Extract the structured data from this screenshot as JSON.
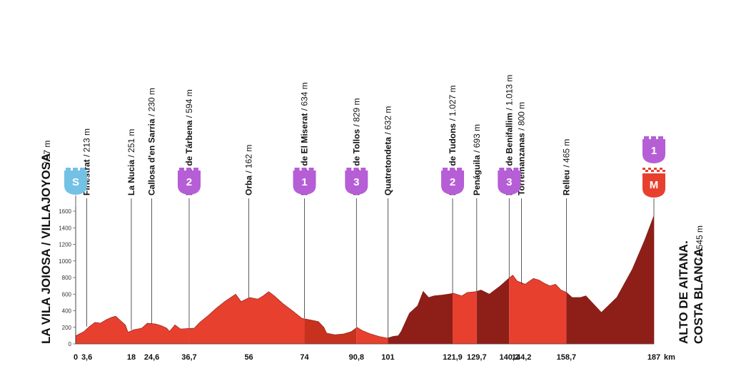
{
  "start_label": "LA VILA JOIOSA / VILLAJOYOSA",
  "start_alt": "/ 97 m",
  "finish_label_line1": "ALTO DE AITANA.",
  "finish_label_line2": "COSTA BLANCA",
  "finish_alt": "/ 1.545 m",
  "km_unit": "km",
  "colors": {
    "fill_light": "#e8402f",
    "fill_dark": "#8e1f18",
    "fill_mid": "#c9311f",
    "leader": "#333333",
    "start_badge": "#74c1e6",
    "cat_badge": "#b65ed6",
    "finish_badge": "#e8402f"
  },
  "chart_data": {
    "type": "area",
    "xlabel": "",
    "ylabel": "",
    "xlim": [
      0,
      187
    ],
    "ylim": [
      0,
      1700
    ],
    "y_ticks": [
      0,
      200,
      400,
      600,
      800,
      1000,
      1200,
      1400,
      1600
    ],
    "x_ticks": [
      {
        "km": 0,
        "label": "0"
      },
      {
        "km": 3.6,
        "label": "3,6"
      },
      {
        "km": 18,
        "label": "18"
      },
      {
        "km": 24.6,
        "label": "24,6"
      },
      {
        "km": 36.7,
        "label": "36,7"
      },
      {
        "km": 56,
        "label": "56"
      },
      {
        "km": 74,
        "label": "74"
      },
      {
        "km": 90.8,
        "label": "90,8"
      },
      {
        "km": 101,
        "label": "101"
      },
      {
        "km": 121.9,
        "label": "121,9"
      },
      {
        "km": 129.7,
        "label": "129,7"
      },
      {
        "km": 140.2,
        "label": "140,2"
      },
      {
        "km": 144.2,
        "label": "144,2"
      },
      {
        "km": 158.7,
        "label": "158,7"
      },
      {
        "km": 187,
        "label": "187"
      }
    ],
    "profile": [
      [
        0,
        97
      ],
      [
        3,
        150
      ],
      [
        5,
        210
      ],
      [
        7,
        260
      ],
      [
        9,
        250
      ],
      [
        11,
        290
      ],
      [
        13,
        320
      ],
      [
        14.5,
        335
      ],
      [
        16,
        290
      ],
      [
        18,
        230
      ],
      [
        19,
        140
      ],
      [
        21,
        170
      ],
      [
        24,
        190
      ],
      [
        26,
        250
      ],
      [
        29,
        240
      ],
      [
        31,
        220
      ],
      [
        33,
        190
      ],
      [
        34,
        150
      ],
      [
        36,
        230
      ],
      [
        38,
        180
      ],
      [
        40,
        185
      ],
      [
        43,
        190
      ],
      [
        45,
        260
      ],
      [
        48,
        340
      ],
      [
        51,
        430
      ],
      [
        54,
        510
      ],
      [
        58,
        600
      ],
      [
        60,
        510
      ],
      [
        63,
        560
      ],
      [
        66,
        540
      ],
      [
        68,
        580
      ],
      [
        70,
        630
      ],
      [
        72,
        580
      ],
      [
        75,
        490
      ],
      [
        79,
        390
      ],
      [
        82,
        310
      ],
      [
        85,
        290
      ],
      [
        88,
        270
      ],
      [
        90,
        200
      ],
      [
        91,
        130
      ],
      [
        94,
        110
      ],
      [
        97,
        120
      ],
      [
        100,
        150
      ],
      [
        102,
        200
      ],
      [
        104,
        160
      ],
      [
        107,
        120
      ],
      [
        110,
        90
      ],
      [
        113,
        70
      ],
      [
        115,
        90
      ],
      [
        117,
        100
      ],
      [
        118,
        150
      ],
      [
        121,
        370
      ],
      [
        124,
        460
      ],
      [
        126,
        634
      ],
      [
        128,
        560
      ],
      [
        130,
        580
      ],
      [
        133,
        590
      ],
      [
        135,
        600
      ],
      [
        137,
        610
      ],
      [
        140,
        580
      ],
      [
        142,
        620
      ],
      [
        145,
        630
      ],
      [
        147,
        650
      ],
      [
        150,
        600
      ],
      [
        154,
        700
      ],
      [
        157,
        790
      ],
      [
        158.5,
        829
      ],
      [
        160,
        760
      ],
      [
        163,
        720
      ],
      [
        166,
        790
      ],
      [
        168,
        770
      ],
      [
        170,
        730
      ],
      [
        172,
        700
      ],
      [
        174,
        720
      ],
      [
        176,
        650
      ],
      [
        178,
        620
      ],
      [
        180,
        560
      ],
      [
        183,
        560
      ],
      [
        185,
        580
      ]
    ],
    "stages": [
      {
        "name": "Finestrat",
        "alt": "/ 213 m",
        "km": 3.6
      },
      {
        "name": "La Nucia",
        "alt": "/ 251 m",
        "km": 18
      },
      {
        "name": "Callosa d'en Sarria",
        "alt": "/ 230 m",
        "km": 24.6
      },
      {
        "name": "Puerto de Tárbena",
        "alt": "/ 594 m",
        "km": 36.7,
        "cat": "2"
      },
      {
        "name": "Orba",
        "alt": "/ 162 m",
        "km": 56
      },
      {
        "name": "Puerto de El Miserat",
        "alt": "/ 634 m",
        "km": 74,
        "cat": "1"
      },
      {
        "name": "Puerto de Tollos",
        "alt": "/ 829 m",
        "km": 90.8,
        "cat": "3"
      },
      {
        "name": "Quatretondeta",
        "alt": "/ 632 m",
        "km": 101
      },
      {
        "name": "Puerto de Tudons",
        "alt": "/ 1.027 m",
        "km": 121.9,
        "cat": "2"
      },
      {
        "name": "Penáguila",
        "alt": "/ 693 m",
        "km": 129.7
      },
      {
        "name": "Puerto de Benifallim",
        "alt": "/ 1.013 m",
        "km": 140.2,
        "cat": "3"
      },
      {
        "name": "Torremanzanas",
        "alt": "/ 800 m",
        "km": 144.2
      },
      {
        "name": "Relleu",
        "alt": "/ 465 m",
        "km": 158.7
      }
    ],
    "start_badge": "S",
    "finish_badge": "M",
    "finish_cat": "1"
  }
}
